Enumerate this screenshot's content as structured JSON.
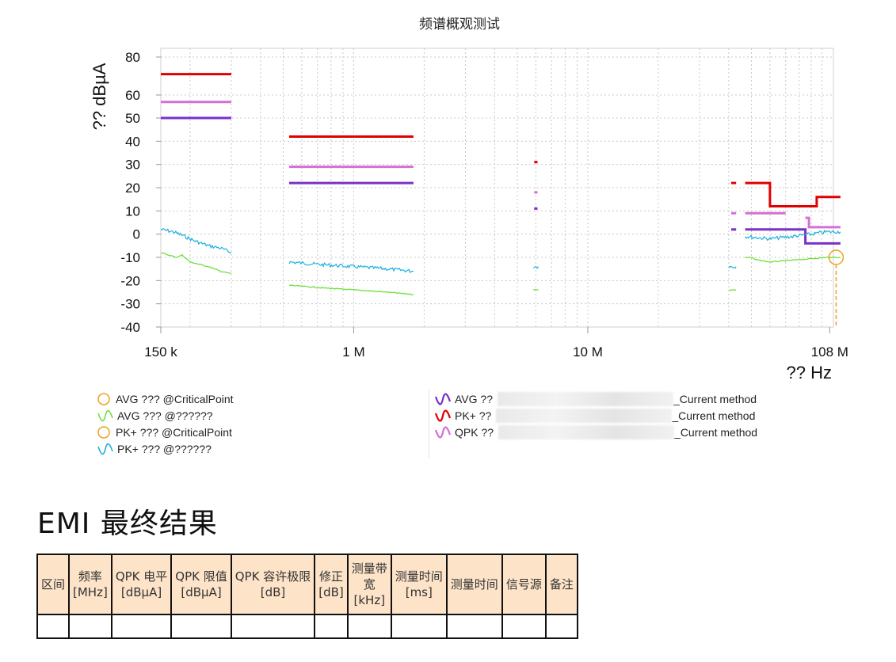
{
  "chart_data": {
    "type": "line",
    "title": "频谱概观测试",
    "xlabel": "?? Hz",
    "ylabel": "?? dBµA",
    "x_scale": "log",
    "xlim": [
      150000,
      120000000
    ],
    "ylim": [
      -40,
      80
    ],
    "x_ticks": [
      {
        "value": 150000,
        "label": "150 k"
      },
      {
        "value": 1000000,
        "label": "1 M"
      },
      {
        "value": 10000000,
        "label": "10 M"
      },
      {
        "value": 108000000,
        "label": "108 M"
      }
    ],
    "y_ticks": [
      80,
      60,
      50,
      40,
      30,
      20,
      10,
      0,
      -10,
      -20,
      -30,
      -40
    ],
    "grid": true,
    "limit_lines": [
      {
        "name": "PK+ limit",
        "color": "#e00000",
        "segments": [
          [
            [
              150000,
              71
            ],
            [
              300000,
              71
            ]
          ],
          [
            [
              530000,
              42
            ],
            [
              1800000,
              42
            ]
          ],
          [
            [
              5900000,
              31
            ],
            [
              6100000,
              31
            ]
          ],
          [
            [
              41000000,
              22
            ],
            [
              43000000,
              22
            ]
          ],
          [
            [
              47000000,
              22
            ],
            [
              60000000,
              22
            ],
            [
              60000000,
              12
            ],
            [
              95000000,
              12
            ],
            [
              95000000,
              16
            ],
            [
              120000000,
              16
            ]
          ]
        ]
      },
      {
        "name": "QPK limit",
        "color": "#d46fd6",
        "segments": [
          [
            [
              150000,
              57
            ],
            [
              300000,
              57
            ]
          ],
          [
            [
              530000,
              29
            ],
            [
              1800000,
              29
            ]
          ],
          [
            [
              5900000,
              18
            ],
            [
              6100000,
              18
            ]
          ],
          [
            [
              41000000,
              9
            ],
            [
              43000000,
              9
            ]
          ],
          [
            [
              47000000,
              9
            ],
            [
              70000000,
              9
            ]
          ],
          [
            [
              85000000,
              7
            ],
            [
              88000000,
              7
            ],
            [
              88000000,
              3
            ],
            [
              120000000,
              3
            ]
          ]
        ]
      },
      {
        "name": "AVG limit",
        "color": "#7b30c8",
        "segments": [
          [
            [
              150000,
              50
            ],
            [
              300000,
              50
            ]
          ],
          [
            [
              530000,
              22
            ],
            [
              1800000,
              22
            ]
          ],
          [
            [
              5900000,
              11
            ],
            [
              6100000,
              11
            ]
          ],
          [
            [
              41000000,
              2
            ],
            [
              43000000,
              2
            ]
          ],
          [
            [
              47000000,
              2
            ],
            [
              85000000,
              2
            ],
            [
              85000000,
              -4
            ],
            [
              120000000,
              -4
            ]
          ]
        ]
      }
    ],
    "series": [
      {
        "name": "PK+ ??? @??????",
        "color": "#1ab0e0",
        "segments": [
          [
            [
              150000,
              2
            ],
            [
              170000,
              1
            ],
            [
              190000,
              -1
            ],
            [
              210000,
              -3
            ],
            [
              240000,
              -5
            ],
            [
              270000,
              -6
            ],
            [
              300000,
              -8
            ]
          ],
          [
            [
              530000,
              -12
            ],
            [
              700000,
              -13
            ],
            [
              1000000,
              -14
            ],
            [
              1400000,
              -15
            ],
            [
              1800000,
              -16
            ]
          ],
          [
            [
              5850000,
              -14
            ],
            [
              6150000,
              -14
            ]
          ],
          [
            [
              40000000,
              -14
            ],
            [
              43000000,
              -14
            ]
          ],
          [
            [
              47000000,
              -1
            ],
            [
              60000000,
              -2
            ],
            [
              75000000,
              -1
            ],
            [
              90000000,
              0
            ],
            [
              105000000,
              1
            ],
            [
              120000000,
              1
            ]
          ]
        ]
      },
      {
        "name": "AVG ??? @??????",
        "color": "#6ee03c",
        "segments": [
          [
            [
              150000,
              -8
            ],
            [
              175000,
              -10
            ],
            [
              185000,
              -9
            ],
            [
              200000,
              -12
            ],
            [
              240000,
              -14
            ],
            [
              270000,
              -16
            ],
            [
              300000,
              -17
            ]
          ],
          [
            [
              530000,
              -22
            ],
            [
              700000,
              -23
            ],
            [
              1000000,
              -24
            ],
            [
              1400000,
              -25
            ],
            [
              1800000,
              -26
            ]
          ],
          [
            [
              5850000,
              -24
            ],
            [
              6150000,
              -24
            ]
          ],
          [
            [
              40000000,
              -24
            ],
            [
              43000000,
              -24
            ]
          ],
          [
            [
              47000000,
              -10
            ],
            [
              50000000,
              -10
            ],
            [
              52000000,
              -11
            ],
            [
              60000000,
              -12
            ],
            [
              80000000,
              -11
            ],
            [
              105000000,
              -10
            ],
            [
              120000000,
              -10
            ]
          ]
        ]
      }
    ],
    "critical_points": [
      {
        "name": "AVG ??? @CriticalPoint",
        "x": 115000000,
        "y": -10,
        "color": "#f0a020"
      }
    ],
    "legend_left": [
      {
        "marker": "circle",
        "color": "#f0a020",
        "label": "AVG ??? @CriticalPoint"
      },
      {
        "marker": "wave",
        "color": "#6ee03c",
        "label": "AVG ??? @??????"
      },
      {
        "marker": "circle",
        "color": "#f0a020",
        "label": "PK+ ??? @CriticalPoint"
      },
      {
        "marker": "wave",
        "color": "#1ab0e0",
        "label": "PK+ ??? @??????"
      }
    ],
    "legend_right": [
      {
        "marker": "wave",
        "color": "#7b30c8",
        "label": "AVG ??",
        "suffix": "_Current method"
      },
      {
        "marker": "wave",
        "color": "#e00000",
        "label": "PK+ ??",
        "suffix": "_Current method"
      },
      {
        "marker": "wave",
        "color": "#d46fd6",
        "label": "QPK ??",
        "suffix": "_Current method"
      }
    ]
  },
  "section_title": "EMI 最终结果",
  "table": {
    "headers": [
      [
        "区间"
      ],
      [
        "频率",
        "[MHz]"
      ],
      [
        "QPK 电平",
        "[dBµA]"
      ],
      [
        "QPK 限值",
        "[dBµA]"
      ],
      [
        "QPK 容许极限",
        "[dB]"
      ],
      [
        "修正",
        "[dB]"
      ],
      [
        "测量带",
        "宽",
        "[kHz]"
      ],
      [
        "测量时间",
        "[ms]"
      ],
      [
        "测量时间"
      ],
      [
        "信号源"
      ],
      [
        "备注"
      ]
    ],
    "rows": [
      [
        "",
        "",
        "",
        "",
        "",
        "",
        "",
        "",
        "",
        "",
        ""
      ]
    ]
  }
}
